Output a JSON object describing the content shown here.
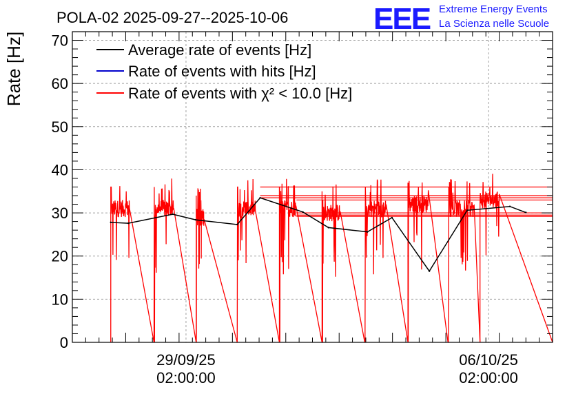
{
  "chart_data": {
    "type": "line",
    "title": "POLA-02 2025-09-27--2025-10-06",
    "ylabel": "Rate [Hz]",
    "xlabel": "",
    "xlim": [
      0,
      9.0
    ],
    "ylim": [
      0,
      72
    ],
    "yticks": [
      0,
      10,
      20,
      30,
      40,
      50,
      60,
      70
    ],
    "grid": true,
    "xticks": [
      {
        "x": 2.13,
        "line1": "29/09/25",
        "line2": "02:00:00"
      },
      {
        "x": 7.8,
        "line1": "06/10/25",
        "line2": "02:00:00"
      }
    ],
    "legend_position": "top-left",
    "series": [
      {
        "name": "Average rate of events [Hz]",
        "color": "#000000",
        "x": [
          0.72,
          1.05,
          1.88,
          2.31,
          3.09,
          3.52,
          4.32,
          4.8,
          5.53,
          5.99,
          6.69,
          7.4,
          8.2,
          8.5
        ],
        "y": [
          27.8,
          27.6,
          29.7,
          28.4,
          27.3,
          33.5,
          30.2,
          26.6,
          25.6,
          28.9,
          16.5,
          30.6,
          31.5,
          30.1
        ]
      },
      {
        "name": "Rate of events with hits [Hz]",
        "color": "#0000cc",
        "x": [],
        "y": []
      },
      {
        "name": "Rate of events with χ² < 10.0 [Hz]",
        "color": "#ff0000",
        "segments": [
          {
            "start": 0.72,
            "end": 1.07,
            "base": 31,
            "drop_end": 1.53
          },
          {
            "start": 1.53,
            "end": 1.9,
            "base": 31,
            "drop_end": 2.32
          },
          {
            "start": 2.32,
            "end": 2.47,
            "base": 29,
            "drop_end": 3.09
          },
          {
            "start": 3.09,
            "end": 3.43,
            "base": 31,
            "drop_end": 3.88
          },
          {
            "start": 3.88,
            "end": 4.19,
            "base": 31,
            "drop_end": 4.68
          },
          {
            "start": 4.68,
            "end": 5.02,
            "base": 30,
            "drop_end": 5.48
          },
          {
            "start": 5.48,
            "end": 5.88,
            "base": 31,
            "drop_end": 6.29
          },
          {
            "start": 6.29,
            "end": 6.67,
            "base": 32,
            "drop_end": 7.04
          },
          {
            "start": 7.04,
            "end": 7.53,
            "base": 31,
            "drop_end": 7.64
          },
          {
            "start": 7.64,
            "end": 8.0,
            "base": 33,
            "drop_end": 9.0
          }
        ],
        "flat_lines": [
          36,
          34,
          33.5,
          33,
          30,
          29.5,
          29.2
        ]
      }
    ]
  },
  "logo": {
    "mark": "EEE",
    "line1": "Extreme Energy Events",
    "line2": "La Scienza nelle Scuole"
  }
}
